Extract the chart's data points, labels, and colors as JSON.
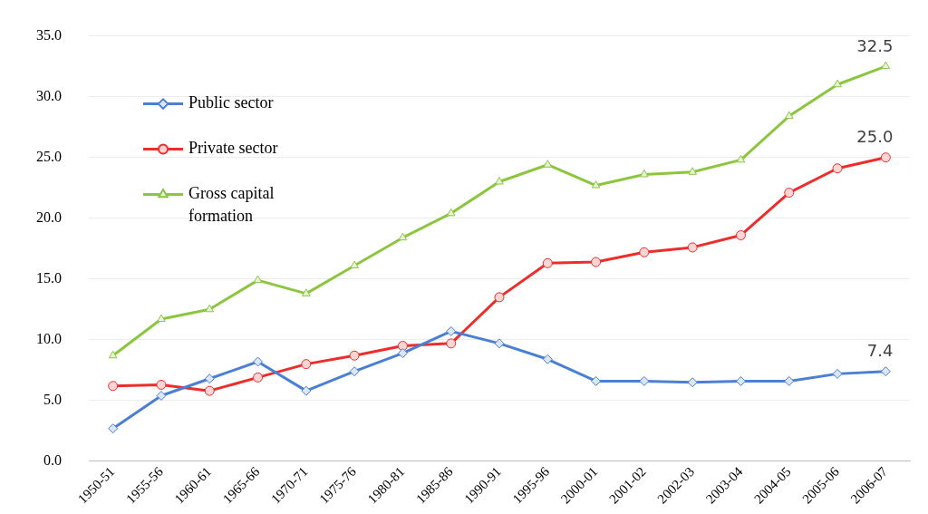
{
  "chart_data": {
    "type": "line",
    "categories": [
      "1950-51",
      "1955-56",
      "1960-61",
      "1965-66",
      "1970-71",
      "1975-76",
      "1980-81",
      "1985-86",
      "1990-91",
      "1995-96",
      "2000-01",
      "2001-02",
      "2002-03",
      "2003-04",
      "2004-05",
      "2005-06",
      "2006-07"
    ],
    "series": [
      {
        "name": "Public sector",
        "color": "#4a7fd4",
        "marker": "diamond",
        "values": [
          2.7,
          5.4,
          6.8,
          8.2,
          5.8,
          7.4,
          8.9,
          10.7,
          9.7,
          8.4,
          6.6,
          6.6,
          6.5,
          6.6,
          6.6,
          7.2,
          7.4
        ],
        "value_labels": [
          null,
          null,
          null,
          null,
          null,
          null,
          null,
          null,
          null,
          null,
          null,
          null,
          null,
          null,
          null,
          null,
          "7.4"
        ]
      },
      {
        "name": "Private sector",
        "color": "#ee2c2c",
        "marker": "circle",
        "values": [
          6.2,
          6.3,
          5.8,
          6.9,
          8.0,
          8.7,
          9.5,
          9.7,
          13.5,
          16.3,
          16.4,
          17.2,
          17.6,
          18.6,
          22.1,
          24.1,
          25.0
        ],
        "value_labels": [
          null,
          null,
          null,
          null,
          null,
          null,
          null,
          null,
          null,
          null,
          null,
          null,
          null,
          null,
          null,
          null,
          "25.0"
        ]
      },
      {
        "name": "Gross capital formation",
        "color": "#8cc63f",
        "marker": "triangle",
        "values": [
          8.7,
          11.7,
          12.5,
          14.9,
          13.8,
          16.1,
          18.4,
          20.4,
          23.0,
          24.4,
          22.7,
          23.6,
          23.8,
          24.8,
          28.4,
          31.0,
          32.5
        ],
        "value_labels": [
          null,
          null,
          null,
          null,
          null,
          null,
          null,
          null,
          null,
          null,
          null,
          null,
          null,
          null,
          null,
          null,
          "32.5"
        ]
      }
    ],
    "ylim": [
      0,
      35
    ],
    "yticks": [
      {
        "value": 0,
        "label": "0.0"
      },
      {
        "value": 5,
        "label": "5.0"
      },
      {
        "value": 10,
        "label": "10.0"
      },
      {
        "value": 15,
        "label": "15.0"
      },
      {
        "value": 20,
        "label": "20.0"
      },
      {
        "value": 25,
        "label": "25.0"
      },
      {
        "value": 30,
        "label": "30.0"
      },
      {
        "value": 35,
        "label": "35.0"
      }
    ],
    "grid": "y",
    "legend": "top left",
    "line_style": "solid"
  }
}
